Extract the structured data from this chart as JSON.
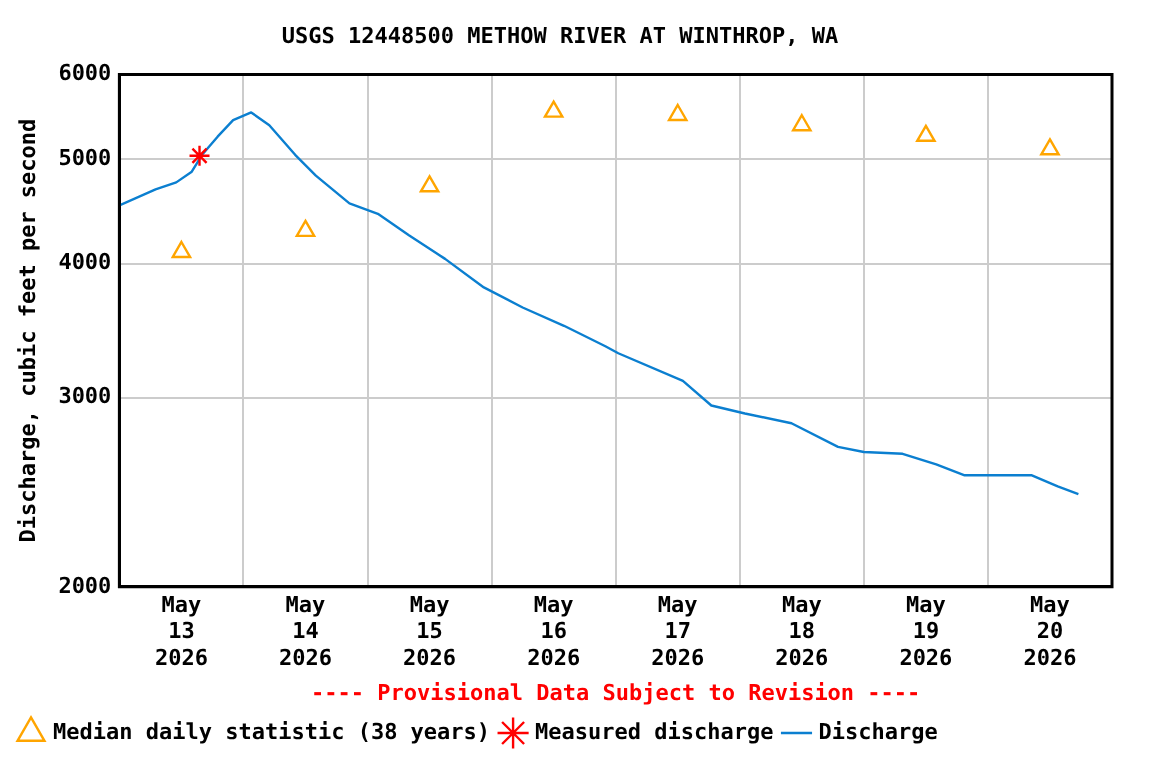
{
  "chart_data": {
    "type": "line",
    "title": "USGS 12448500 METHOW RIVER AT WINTHROP, WA",
    "ylabel": "Discharge, cubic feet per second",
    "log": "y",
    "grid": true,
    "legend": "bottom left",
    "annotations": [
      "---- Provisional Data Subject to Revision ----"
    ],
    "xlim": [
      "2026-05-13T00:00",
      "2026-05-21T00:00"
    ],
    "xticks": [
      {
        "value": "2026-05-13T12:00",
        "label": "May\n13\n2026"
      },
      {
        "value": "2026-05-14T00:00",
        "label": null
      },
      {
        "value": "2026-05-14T12:00",
        "label": "May\n14\n2026"
      },
      {
        "value": "2026-05-15T00:00",
        "label": null
      },
      {
        "value": "2026-05-15T12:00",
        "label": "May\n15\n2026"
      },
      {
        "value": "2026-05-16T00:00",
        "label": null
      },
      {
        "value": "2026-05-16T12:00",
        "label": "May\n16\n2026"
      },
      {
        "value": "2026-05-17T00:00",
        "label": null
      },
      {
        "value": "2026-05-17T12:00",
        "label": "May\n17\n2026"
      },
      {
        "value": "2026-05-18T00:00",
        "label": null
      },
      {
        "value": "2026-05-18T12:00",
        "label": "May\n18\n2026"
      },
      {
        "value": "2026-05-19T00:00",
        "label": null
      },
      {
        "value": "2026-05-19T12:00",
        "label": "May\n19\n2026"
      },
      {
        "value": "2026-05-20T00:00",
        "label": null
      },
      {
        "value": "2026-05-20T12:00",
        "label": "May\n20\n2026"
      }
    ],
    "ylim": [
      2000,
      6000
    ],
    "yticks": [
      2000,
      3000,
      4000,
      5000,
      6000
    ],
    "series": [
      {
        "name": "Median daily statistic (38 years)",
        "type": "scatter",
        "marker": "triangle",
        "color": "#ffa500",
        "x": [
          "2026-05-13T12:00",
          "2026-05-14T12:00",
          "2026-05-15T12:00",
          "2026-05-16T12:00",
          "2026-05-17T12:00",
          "2026-05-18T12:00",
          "2026-05-19T12:00",
          "2026-05-20T12:00"
        ],
        "values": [
          4100,
          4290,
          4720,
          5540,
          5500,
          5380,
          5260,
          5110
        ]
      },
      {
        "name": "Measured discharge",
        "type": "scatter",
        "marker": "cross",
        "color": "#ff0000",
        "x": [
          "2026-05-13T15:30"
        ],
        "values": [
          5040
        ]
      },
      {
        "name": "Discharge",
        "marker": "none",
        "color": "#0b7fd0",
        "x": [
          "2026-05-13T00:00",
          "2026-05-13T07:00",
          "2026-05-13T11:00",
          "2026-05-13T14:00",
          "2026-05-13T16:00",
          "2026-05-13T19:00",
          "2026-05-13T22:00",
          "2026-05-14T01:30",
          "2026-05-14T05:00",
          "2026-05-14T10:00",
          "2026-05-14T14:00",
          "2026-05-14T20:30",
          "2026-05-15T02:00",
          "2026-05-15T08:00",
          "2026-05-15T15:00",
          "2026-05-15T22:30",
          "2026-05-16T06:00",
          "2026-05-16T14:00",
          "2026-05-16T22:00",
          "2026-05-17T00:30",
          "2026-05-17T13:00",
          "2026-05-17T18:30",
          "2026-05-18T01:00",
          "2026-05-18T10:00",
          "2026-05-18T19:00",
          "2026-05-19T00:00",
          "2026-05-19T07:30",
          "2026-05-19T14:00",
          "2026-05-19T19:30",
          "2026-05-20T08:30",
          "2026-05-20T13:30",
          "2026-05-20T17:30"
        ],
        "values": [
          4530,
          4690,
          4760,
          4870,
          5050,
          5250,
          5440,
          5530,
          5380,
          5050,
          4830,
          4550,
          4450,
          4250,
          4040,
          3800,
          3640,
          3500,
          3350,
          3300,
          3110,
          2950,
          2900,
          2840,
          2700,
          2670,
          2660,
          2600,
          2540,
          2540,
          2480,
          2440
        ]
      }
    ]
  }
}
